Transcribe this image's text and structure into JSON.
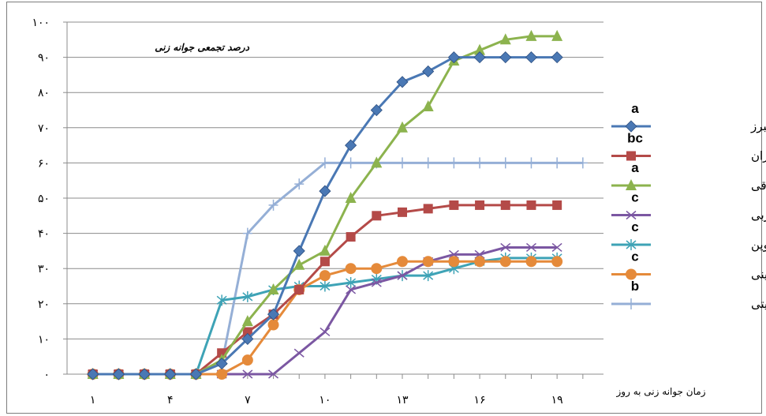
{
  "chart_data": {
    "type": "line",
    "title": "درصد تجمعی جوانه زنی",
    "xlabel": "زمان جوانه زنی به روز",
    "ylabel": "",
    "x": [
      1,
      2,
      3,
      4,
      5,
      6,
      7,
      8,
      9,
      10,
      11,
      12,
      13,
      14,
      15,
      16,
      17,
      18,
      19,
      20
    ],
    "xticks": [
      1,
      4,
      7,
      10,
      13,
      16,
      19
    ],
    "xtick_labels": [
      "۱",
      "۴",
      "۷",
      "۱۰",
      "۱۳",
      "۱۶",
      "۱۹"
    ],
    "xlim": [
      0,
      20.8
    ],
    "ylim": [
      0,
      100
    ],
    "yticks": [
      0,
      10,
      20,
      30,
      40,
      50,
      60,
      70,
      80,
      90,
      100
    ],
    "ytick_labels": [
      "۰",
      "۱۰",
      "۲۰",
      "۳۰",
      "۴۰",
      "۵۰",
      "۶۰",
      "۷۰",
      "۸۰",
      "۹۰",
      "۱۰۰"
    ],
    "grid": "horizontal",
    "legend_position": "right",
    "series": [
      {
        "name": "البرز",
        "group": "a",
        "color": "#4a78b4",
        "marker": "diamond",
        "values": [
          0,
          0,
          0,
          0,
          0,
          3,
          10,
          17,
          35,
          52,
          65,
          75,
          83,
          86,
          90,
          90,
          90,
          90,
          90,
          null
        ]
      },
      {
        "name": "مازندران",
        "group": "bc",
        "color": "#b44a48",
        "marker": "square",
        "values": [
          0,
          0,
          0,
          0,
          0,
          6,
          12,
          17,
          24,
          32,
          39,
          45,
          46,
          47,
          48,
          48,
          48,
          48,
          48,
          null
        ]
      },
      {
        "name": "آذربایجان شرقی",
        "group": "a",
        "color": "#8cb34e",
        "marker": "triangle",
        "values": [
          0,
          0,
          0,
          0,
          0,
          4,
          15,
          24,
          31,
          35,
          50,
          60,
          70,
          76,
          89,
          92,
          95,
          96,
          96,
          null
        ]
      },
      {
        "name": "آذربایجان غربی",
        "group": "c",
        "color": "#7b57a2",
        "marker": "x",
        "values": [
          0,
          0,
          0,
          0,
          0,
          0,
          0,
          0,
          6,
          12,
          24,
          26,
          28,
          32,
          34,
          34,
          36,
          36,
          36,
          null
        ]
      },
      {
        "name": "قزوین",
        "group": "c",
        "color": "#3ea3b6",
        "marker": "star",
        "values": [
          0,
          0,
          0,
          0,
          0,
          21,
          22,
          24,
          25,
          25,
          26,
          27,
          28,
          28,
          30,
          32,
          33,
          33,
          33,
          null
        ]
      },
      {
        "name": "چینی",
        "group": "c",
        "color": "#e58a3a",
        "marker": "circle",
        "values": [
          0,
          0,
          0,
          0,
          0,
          0,
          4,
          14,
          24,
          28,
          30,
          30,
          32,
          32,
          32,
          32,
          32,
          32,
          32,
          null
        ]
      },
      {
        "name": "تیتی",
        "group": "b",
        "color": "#95afd6",
        "marker": "plus",
        "values": [
          0,
          0,
          0,
          0,
          0,
          3,
          40,
          48,
          54,
          60,
          60,
          60,
          60,
          60,
          60,
          60,
          60,
          60,
          60,
          60
        ]
      }
    ]
  }
}
